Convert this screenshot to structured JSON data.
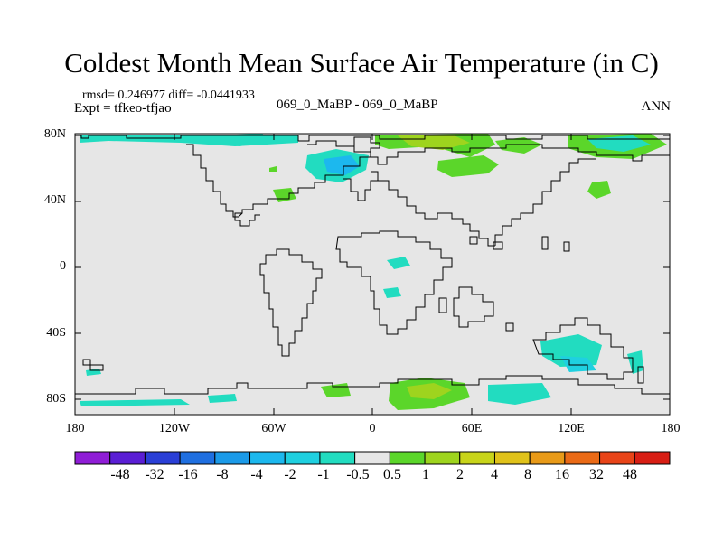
{
  "title": "Coldest Month Mean Surface Air Temperature (in C)",
  "stats": {
    "rmsd_line": "rmsd= 0.246977  diff= -0.0441933",
    "expt_line": "Expt = tfkeo-tfjao"
  },
  "case_label": "069_0_MaBP - 069_0_MaBP",
  "season": "ANN",
  "axes": {
    "y_ticks": [
      "80N",
      "40N",
      "0",
      "40S",
      "80S"
    ],
    "x_ticks": [
      "180",
      "120W",
      "60W",
      "0",
      "60E",
      "120E",
      "180"
    ]
  },
  "colorbar": {
    "labels": [
      "-48",
      "-32",
      "-16",
      "-8",
      "-4",
      "-2",
      "-1",
      "-0.5",
      "0.5",
      "1",
      "2",
      "4",
      "8",
      "16",
      "32",
      "48"
    ],
    "colors": [
      "#8f1dd6",
      "#5a1ed4",
      "#2a3fd6",
      "#1f6fe0",
      "#1b9ae8",
      "#1cb8ee",
      "#1fd0e0",
      "#22dcc0",
      "#e6e6e6",
      "#5bd62a",
      "#9ed41e",
      "#c8d41a",
      "#e0c21a",
      "#e89a18",
      "#ea6a16",
      "#e84418",
      "#d81e14"
    ]
  },
  "fill_colors": {
    "background": "#e6e6e6",
    "cyan": "#22dcc0",
    "cyan_dark": "#1cb8ee",
    "green": "#5bd62a",
    "yellow_green": "#9ed41e"
  }
}
